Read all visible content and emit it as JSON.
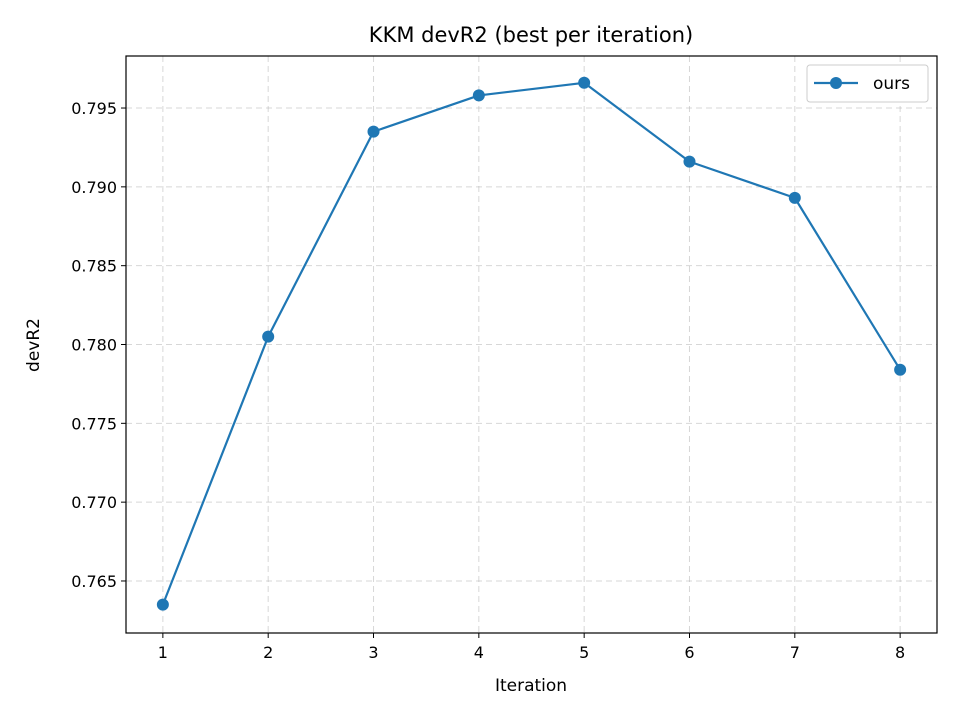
{
  "chart_data": {
    "type": "line",
    "title": "KKM devR2 (best per iteration)",
    "xlabel": "Iteration",
    "ylabel": "devR2",
    "x": [
      1,
      2,
      3,
      4,
      5,
      6,
      7,
      8
    ],
    "series": [
      {
        "name": "ours",
        "values": [
          0.7635,
          0.7805,
          0.7935,
          0.7958,
          0.7966,
          0.7916,
          0.7893,
          0.7784
        ],
        "color": "#1f77b4",
        "marker": "circle"
      }
    ],
    "xlim": [
      0.65,
      8.35
    ],
    "ylim": [
      0.7617,
      0.7983
    ],
    "xticks": [
      "1",
      "2",
      "3",
      "4",
      "5",
      "6",
      "7",
      "8"
    ],
    "yticks": [
      "0.765",
      "0.770",
      "0.775",
      "0.780",
      "0.785",
      "0.790",
      "0.795"
    ],
    "grid": true,
    "legend_position": "top-right"
  }
}
